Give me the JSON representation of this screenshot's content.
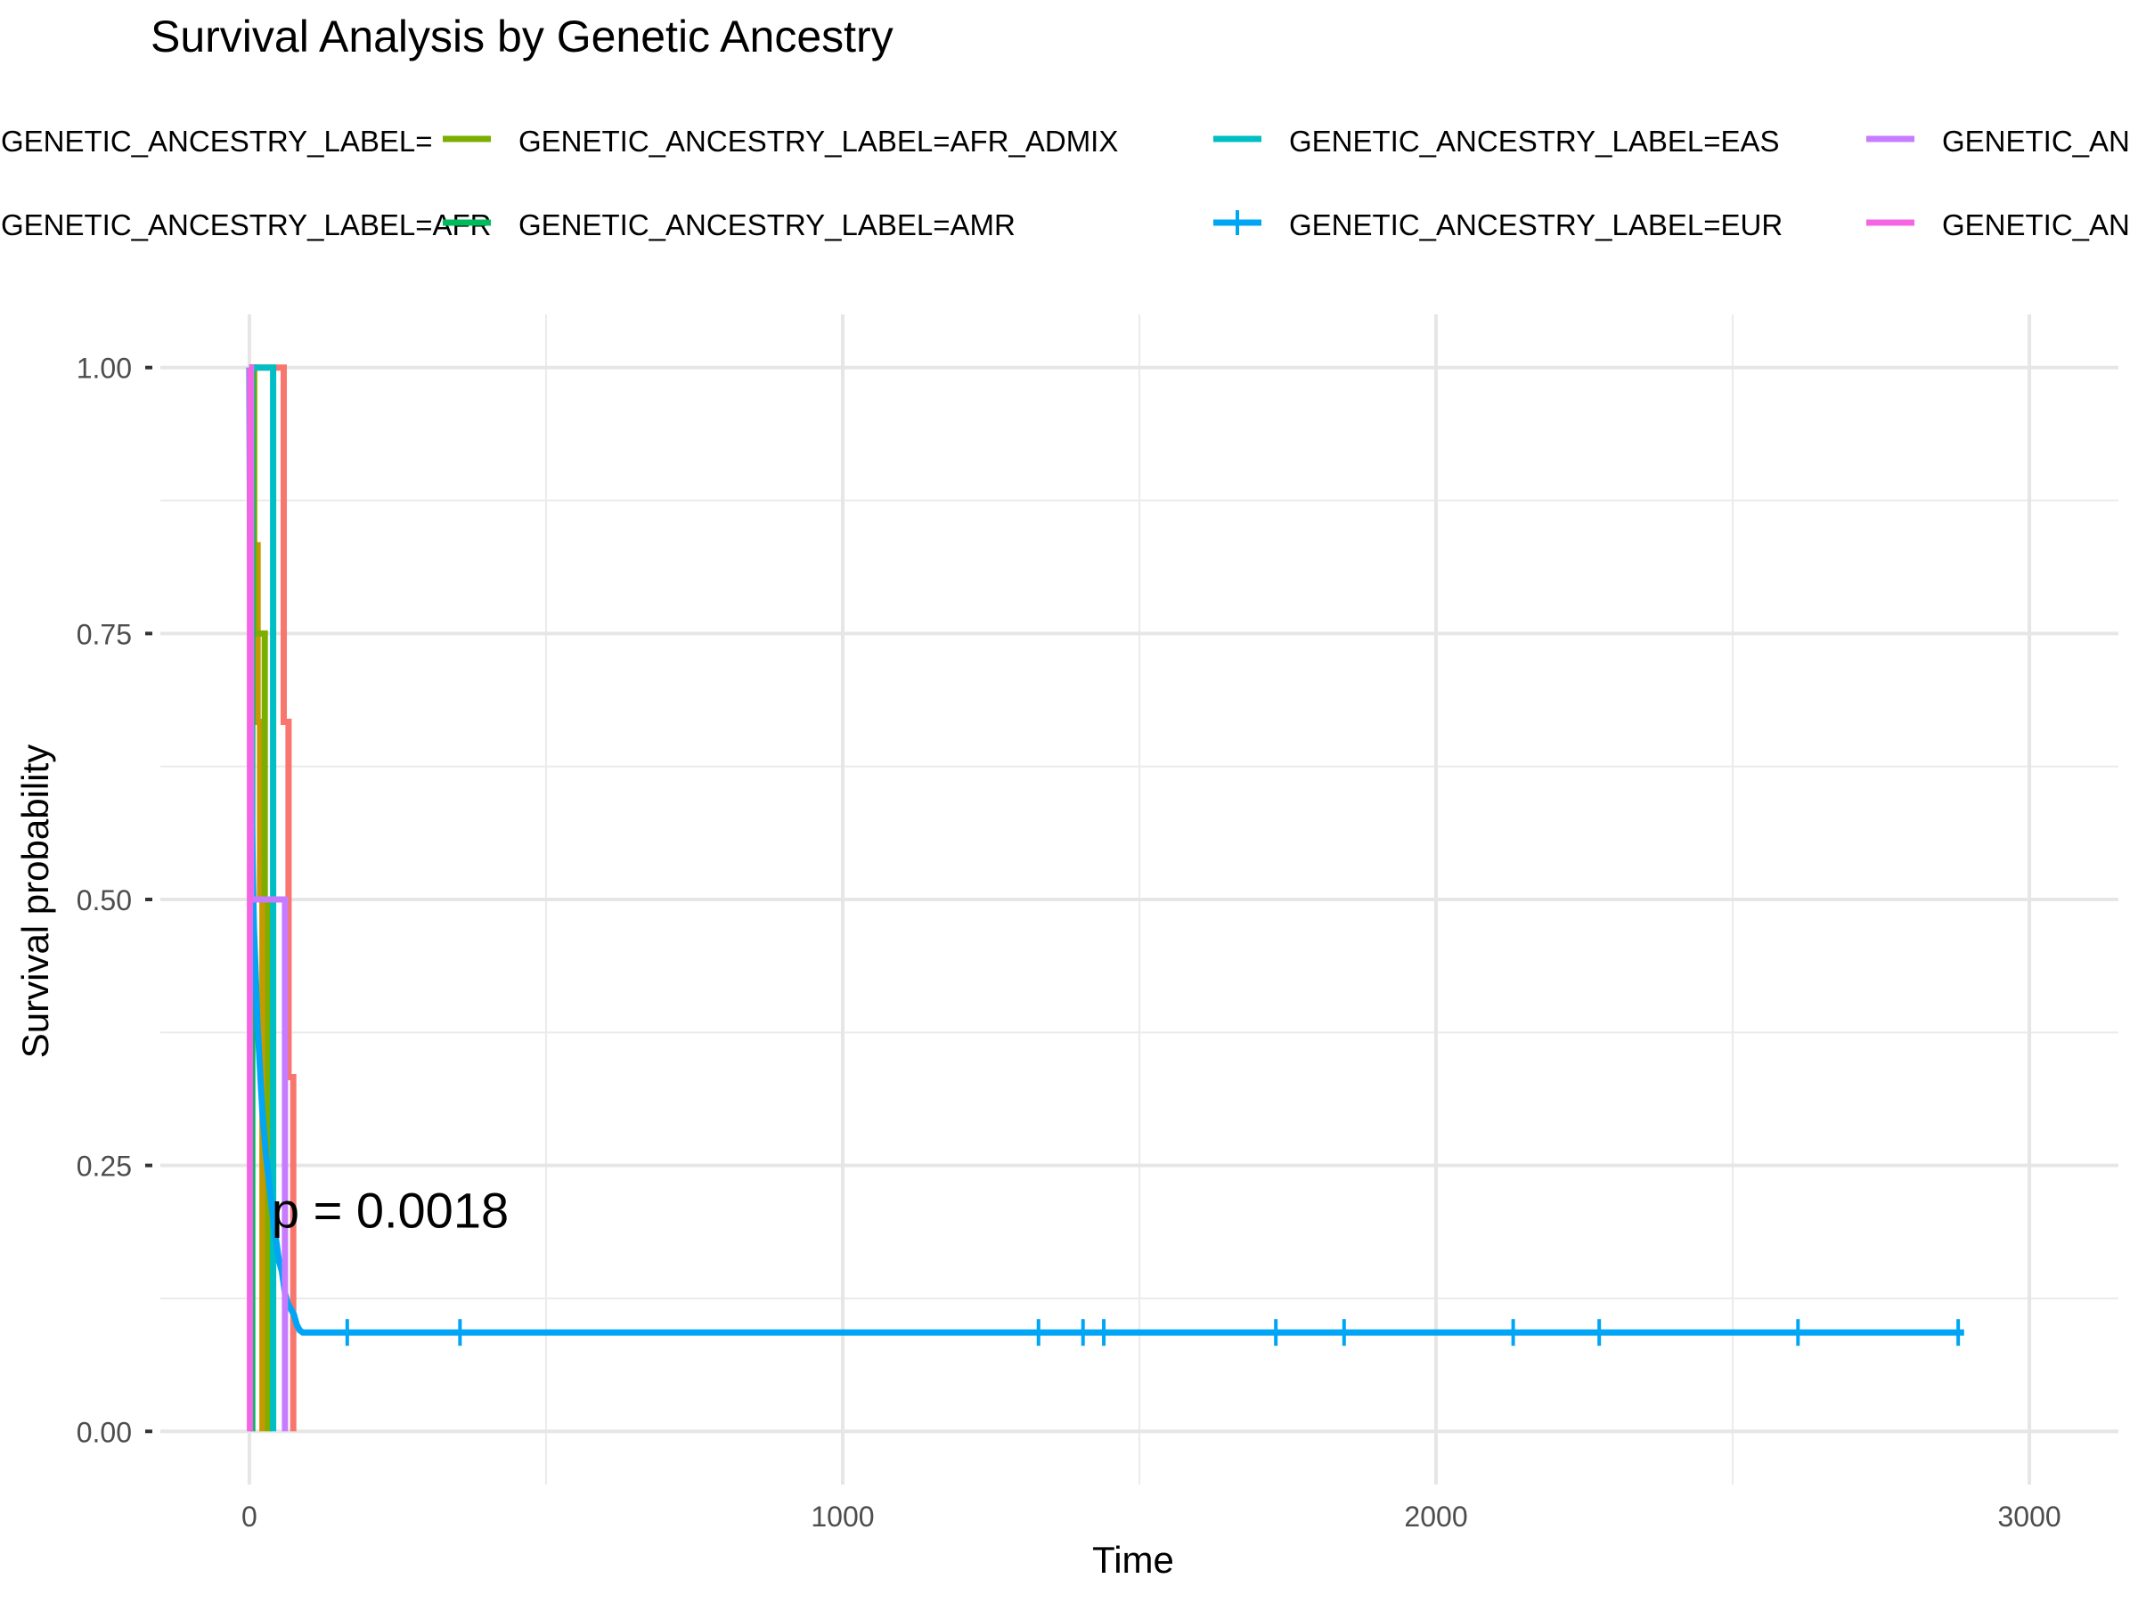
{
  "chart_data": {
    "type": "line",
    "title": "Survival Analysis by Genetic Ancestry",
    "xlabel": "Time",
    "ylabel": "Survival probability",
    "xlim": [
      -150,
      3150
    ],
    "ylim": [
      -0.05,
      1.05
    ],
    "xticks": [
      "0",
      "1000",
      "2000",
      "3000"
    ],
    "yticks": [
      "0.00",
      "0.25",
      "0.50",
      "0.75",
      "1.00"
    ],
    "xtick_values": [
      0,
      1000,
      2000,
      3000
    ],
    "ytick_values": [
      0,
      0.25,
      0.5,
      0.75,
      1
    ],
    "grid": true,
    "legend_position": "top",
    "annotation": "p = 0.0018",
    "annotation_at": [
      60,
      0.2
    ],
    "legend": [
      {
        "label": "GENETIC_ANCESTRY_LABEL=",
        "color": "#F8766D"
      },
      {
        "label": "GENETIC_ANCESTRY_LABEL=AFR",
        "color": "#C49A00"
      },
      {
        "label": "GENETIC_ANCESTRY_LABEL=AFR_ADMIX",
        "color": "#7CAE00"
      },
      {
        "label": "GENETIC_ANCESTRY_LABEL=AMR",
        "color": "#00BA5E"
      },
      {
        "label": "GENETIC_ANCESTRY_LABEL=EAS",
        "color": "#00BFC4"
      },
      {
        "label": "GENETIC_ANCESTRY_LABEL=EUR",
        "color": "#00A5F5"
      },
      {
        "label": "GENETIC_AN",
        "color": "#C77CFF"
      },
      {
        "label": "GENETIC_AN",
        "color": "#F564E3"
      }
    ],
    "series": [
      {
        "color": "#F8766D",
        "points": [
          [
            0,
            1
          ],
          [
            58,
            1
          ],
          [
            58,
            0.667
          ],
          [
            66,
            0.667
          ],
          [
            66,
            0.333
          ],
          [
            74,
            0.333
          ],
          [
            74,
            0
          ]
        ],
        "censor": []
      },
      {
        "color": "#C49A00",
        "points": [
          [
            0,
            1
          ],
          [
            8,
            1
          ],
          [
            8,
            0.833
          ],
          [
            14,
            0.833
          ],
          [
            14,
            0.667
          ],
          [
            18,
            0.667
          ],
          [
            18,
            0.5
          ],
          [
            22,
            0.5
          ],
          [
            22,
            0
          ]
        ],
        "censor": []
      },
      {
        "color": "#7CAE00",
        "points": [
          [
            0,
            1
          ],
          [
            8,
            1
          ],
          [
            8,
            0.75
          ],
          [
            26,
            0.75
          ],
          [
            26,
            0.5
          ],
          [
            32,
            0.5
          ],
          [
            32,
            0
          ]
        ],
        "censor": []
      },
      {
        "color": "#00BA5E",
        "points": [
          [
            0,
            1
          ],
          [
            5,
            1
          ],
          [
            5,
            0
          ]
        ],
        "censor": []
      },
      {
        "color": "#00BFC4",
        "points": [
          [
            0,
            1
          ],
          [
            40,
            1
          ],
          [
            40,
            0
          ]
        ],
        "censor": []
      },
      {
        "color": "#00A5F5",
        "points": [
          [
            0,
            1
          ],
          [
            1,
            0.85
          ],
          [
            2,
            0.74
          ],
          [
            3,
            0.66
          ],
          [
            4,
            0.6
          ],
          [
            5,
            0.56
          ],
          [
            6,
            0.52
          ],
          [
            7,
            0.49
          ],
          [
            8,
            0.47
          ],
          [
            10,
            0.44
          ],
          [
            12,
            0.41
          ],
          [
            14,
            0.38
          ],
          [
            16,
            0.36
          ],
          [
            18,
            0.34
          ],
          [
            20,
            0.32
          ],
          [
            22,
            0.3
          ],
          [
            25,
            0.28
          ],
          [
            28,
            0.26
          ],
          [
            32,
            0.24
          ],
          [
            36,
            0.22
          ],
          [
            40,
            0.2
          ],
          [
            45,
            0.18
          ],
          [
            50,
            0.16
          ],
          [
            55,
            0.15
          ],
          [
            60,
            0.13
          ],
          [
            65,
            0.12
          ],
          [
            70,
            0.115
          ],
          [
            75,
            0.11
          ],
          [
            80,
            0.1
          ],
          [
            85,
            0.095
          ],
          [
            90,
            0.093
          ],
          [
            2890,
            0.093
          ]
        ],
        "censor": [
          165,
          355,
          1330,
          1405,
          1440,
          1730,
          1845,
          2130,
          2275,
          2610,
          2880
        ]
      },
      {
        "color": "#C77CFF",
        "points": [
          [
            0,
            1
          ],
          [
            3,
            1
          ],
          [
            3,
            0.5
          ],
          [
            60,
            0.5
          ],
          [
            60,
            0
          ]
        ],
        "censor": []
      },
      {
        "color": "#F564E3",
        "points": [
          [
            0,
            1
          ],
          [
            1,
            1
          ],
          [
            1,
            0
          ]
        ],
        "censor": []
      }
    ]
  }
}
